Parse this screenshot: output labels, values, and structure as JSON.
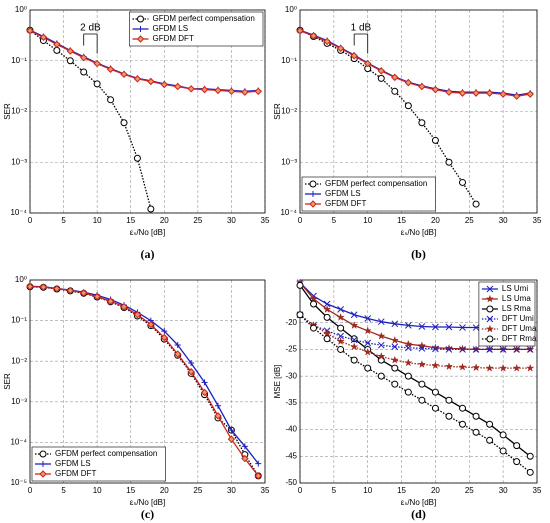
{
  "chart_data": [
    {
      "type": "line",
      "caption": "(a)",
      "xlabel": "εₛ/No [dB]",
      "ylabel": "SER",
      "log_y": true,
      "grid": true,
      "legend": "upper right",
      "annotation": "2 dB",
      "x": [
        0,
        2,
        4,
        6,
        8,
        10,
        12,
        14,
        16,
        18,
        20,
        22,
        24,
        26,
        28,
        30,
        32,
        34
      ],
      "xlim": [
        0,
        35
      ],
      "xticks": [
        0,
        5,
        10,
        15,
        20,
        25,
        30,
        35
      ],
      "ylim": [
        0.0001,
        1
      ],
      "yticks": [
        {
          "value": 0.0001,
          "label": "10⁻⁴"
        },
        {
          "value": 0.001,
          "label": "10⁻³"
        },
        {
          "value": 0.01,
          "label": "10⁻²"
        },
        {
          "value": 0.1,
          "label": "10⁻¹"
        },
        {
          "value": 1,
          "label": "10⁰"
        }
      ],
      "series": [
        {
          "name": "GFDM perfect compensation",
          "color": "#000000",
          "dash": "dotted",
          "marker": "circle",
          "values": [
            0.4,
            0.25,
            0.16,
            0.1,
            0.06,
            0.035,
            0.017,
            0.006,
            0.0012,
            0.00012,
            null,
            null,
            null,
            null,
            null,
            null,
            null,
            null
          ]
        },
        {
          "name": "GFDM LS",
          "color": "#1f1fbf",
          "dash": "solid",
          "marker": "plus",
          "values": [
            0.4,
            0.3,
            0.22,
            0.16,
            0.12,
            0.09,
            0.07,
            0.055,
            0.045,
            0.04,
            0.035,
            0.032,
            0.028,
            0.028,
            0.027,
            0.026,
            0.025,
            0.026
          ]
        },
        {
          "name": "GFDM DFT",
          "color": "#cc2222",
          "dash": "solid",
          "marker": "diamond",
          "values": [
            0.39,
            0.29,
            0.21,
            0.155,
            0.115,
            0.088,
            0.068,
            0.054,
            0.044,
            0.039,
            0.034,
            0.031,
            0.028,
            0.027,
            0.026,
            0.025,
            0.024,
            0.025
          ]
        }
      ]
    },
    {
      "type": "line",
      "caption": "(b)",
      "xlabel": "εₛ/No [dB]",
      "ylabel": "SER",
      "log_y": true,
      "grid": true,
      "legend": "lower left",
      "annotation": "1 dB",
      "x": [
        0,
        2,
        4,
        6,
        8,
        10,
        12,
        14,
        16,
        18,
        20,
        22,
        24,
        26,
        28,
        30,
        32,
        34
      ],
      "xlim": [
        0,
        35
      ],
      "xticks": [
        0,
        5,
        10,
        15,
        20,
        25,
        30,
        35
      ],
      "ylim": [
        0.0001,
        1
      ],
      "yticks": [
        {
          "value": 0.0001,
          "label": "10⁻⁴"
        },
        {
          "value": 0.001,
          "label": "10⁻³"
        },
        {
          "value": 0.01,
          "label": "10⁻²"
        },
        {
          "value": 0.1,
          "label": "10⁻¹"
        },
        {
          "value": 1,
          "label": "10⁰"
        }
      ],
      "series": [
        {
          "name": "GFDM perfect compensation",
          "color": "#000000",
          "dash": "dotted",
          "marker": "circle",
          "values": [
            0.4,
            0.3,
            0.22,
            0.16,
            0.11,
            0.07,
            0.045,
            0.025,
            0.013,
            0.006,
            0.0027,
            0.001,
            0.0004,
            0.00015,
            null,
            null,
            null,
            null
          ]
        },
        {
          "name": "GFDM LS",
          "color": "#1f1fbf",
          "dash": "solid",
          "marker": "plus",
          "values": [
            0.4,
            0.32,
            0.25,
            0.18,
            0.13,
            0.09,
            0.065,
            0.048,
            0.038,
            0.032,
            0.028,
            0.025,
            0.024,
            0.024,
            0.024,
            0.023,
            0.021,
            0.023
          ]
        },
        {
          "name": "GFDM DFT",
          "color": "#cc2222",
          "dash": "solid",
          "marker": "diamond",
          "values": [
            0.39,
            0.31,
            0.24,
            0.175,
            0.125,
            0.088,
            0.063,
            0.047,
            0.037,
            0.031,
            0.027,
            0.024,
            0.023,
            0.023,
            0.023,
            0.022,
            0.02,
            0.022
          ]
        }
      ]
    },
    {
      "type": "line",
      "caption": "(c)",
      "xlabel": "εₛ/No [dB]",
      "ylabel": "SER",
      "log_y": true,
      "grid": true,
      "legend": "lower left",
      "x": [
        0,
        2,
        4,
        6,
        8,
        10,
        12,
        14,
        16,
        18,
        20,
        22,
        24,
        26,
        28,
        30,
        32,
        34
      ],
      "xlim": [
        0,
        35
      ],
      "xticks": [
        0,
        5,
        10,
        15,
        20,
        25,
        30,
        35
      ],
      "ylim": [
        1e-05,
        1
      ],
      "yticks": [
        {
          "value": 1e-05,
          "label": "10⁻⁵"
        },
        {
          "value": 0.0001,
          "label": "10⁻⁴"
        },
        {
          "value": 0.001,
          "label": "10⁻³"
        },
        {
          "value": 0.01,
          "label": "10⁻²"
        },
        {
          "value": 0.1,
          "label": "10⁻¹"
        },
        {
          "value": 1,
          "label": "10⁰"
        }
      ],
      "series": [
        {
          "name": "GFDM perfect compensation",
          "color": "#000000",
          "dash": "dotted",
          "marker": "circle",
          "values": [
            0.68,
            0.66,
            0.6,
            0.54,
            0.47,
            0.38,
            0.29,
            0.21,
            0.13,
            0.075,
            0.035,
            0.014,
            0.005,
            0.0015,
            0.0004,
            0.0002,
            5e-05,
            1.5e-05
          ]
        },
        {
          "name": "GFDM LS",
          "color": "#1f1fbf",
          "dash": "solid",
          "marker": "plus",
          "values": [
            0.7,
            0.68,
            0.62,
            0.56,
            0.5,
            0.42,
            0.33,
            0.24,
            0.16,
            0.1,
            0.055,
            0.025,
            0.009,
            0.003,
            0.0008,
            0.0002,
            8e-05,
            3e-05
          ]
        },
        {
          "name": "GFDM DFT",
          "color": "#cc2222",
          "dash": "solid",
          "marker": "diamond",
          "values": [
            0.69,
            0.67,
            0.61,
            0.55,
            0.48,
            0.39,
            0.3,
            0.22,
            0.14,
            0.08,
            0.038,
            0.015,
            0.0055,
            0.0017,
            0.00045,
            0.00012,
            4e-05,
            1.5e-05
          ]
        }
      ]
    },
    {
      "type": "line",
      "caption": "(d)",
      "xlabel": "εₛ/No [dB]",
      "ylabel": "MSE [dB]",
      "log_y": false,
      "grid": true,
      "legend": "upper right",
      "x": [
        0,
        2,
        4,
        6,
        8,
        10,
        12,
        14,
        16,
        18,
        20,
        22,
        24,
        26,
        28,
        30,
        32,
        34
      ],
      "xlim": [
        0,
        35
      ],
      "xticks": [
        0,
        5,
        10,
        15,
        20,
        25,
        30,
        35
      ],
      "ylim": [
        -50,
        -12
      ],
      "yticks": [
        -50,
        -45,
        -40,
        -35,
        -30,
        -25,
        -20
      ],
      "series": [
        {
          "name": "LS Umi",
          "color": "#1f1fbf",
          "dash": "solid",
          "marker": "x",
          "values": [
            -12.5,
            -15,
            -16.5,
            -17.5,
            -18.5,
            -19.2,
            -19.8,
            -20.2,
            -20.5,
            -20.7,
            -20.8,
            -20.8,
            -20.9,
            -20.9,
            -21,
            -21,
            -21,
            -21
          ]
        },
        {
          "name": "LS Uma",
          "color": "#a0281e",
          "dash": "solid",
          "marker": "star",
          "values": [
            -12.5,
            -15.5,
            -17.5,
            -19,
            -20.5,
            -21.5,
            -22.5,
            -23.3,
            -24,
            -24.3,
            -24.7,
            -24.8,
            -24.9,
            -25,
            -25,
            -25,
            -25,
            -25
          ]
        },
        {
          "name": "LS Rma",
          "color": "#000000",
          "dash": "solid",
          "marker": "circle",
          "values": [
            -13,
            -16.5,
            -19,
            -21,
            -23,
            -25,
            -27,
            -28.5,
            -30,
            -31.5,
            -33,
            -34.5,
            -36,
            -37.5,
            -39,
            -41,
            -43,
            -45
          ]
        },
        {
          "name": "DFT Umi",
          "color": "#1f1fbf",
          "dash": "dotted",
          "marker": "x",
          "values": [
            -18.5,
            -20.5,
            -21.5,
            -22.5,
            -23.2,
            -23.8,
            -24.2,
            -24.5,
            -24.7,
            -24.8,
            -24.9,
            -25,
            -25,
            -25,
            -25,
            -25,
            -25,
            -25
          ]
        },
        {
          "name": "DFT Uma",
          "color": "#a0281e",
          "dash": "dotted",
          "marker": "star",
          "values": [
            -18.5,
            -20.5,
            -22,
            -23.5,
            -24.5,
            -25.5,
            -26.3,
            -27,
            -27.5,
            -27.8,
            -28,
            -28.2,
            -28.3,
            -28.4,
            -28.5,
            -28.5,
            -28.5,
            -28.5
          ]
        },
        {
          "name": "DFT Rma",
          "color": "#000000",
          "dash": "dotted",
          "marker": "circle",
          "values": [
            -18.5,
            -21,
            -23,
            -25,
            -27,
            -28.5,
            -30,
            -31.5,
            -33,
            -34.5,
            -36,
            -37.5,
            -39,
            -40.5,
            -42,
            -44,
            -46,
            -48
          ]
        }
      ]
    }
  ]
}
